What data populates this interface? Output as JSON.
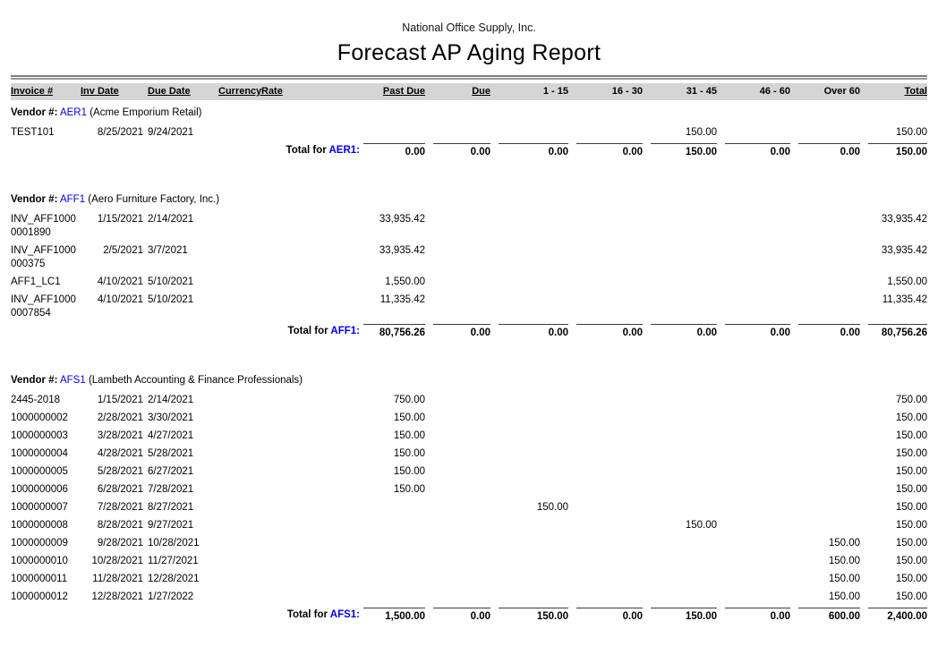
{
  "report": {
    "company": "National Office Supply, Inc.",
    "title": "Forecast AP Aging Report"
  },
  "labels": {
    "vendor_prefix": "Vendor #:",
    "total_for": "Total for"
  },
  "columns": [
    {
      "key": "invoice",
      "label": "Invoice #",
      "align": "left",
      "underline": true
    },
    {
      "key": "inv_date",
      "label": "Inv Date",
      "align": "left",
      "underline": true
    },
    {
      "key": "due_date",
      "label": "Due Date",
      "align": "left",
      "underline": true
    },
    {
      "key": "currency",
      "label": "Currency",
      "align": "left",
      "underline": true
    },
    {
      "key": "rate",
      "label": "Rate",
      "align": "left",
      "underline": true
    },
    {
      "key": "past_due",
      "label": "Past Due",
      "align": "right",
      "underline": true
    },
    {
      "key": "due",
      "label": "Due",
      "align": "right",
      "underline": true
    },
    {
      "key": "b1_15",
      "label": "1 - 15",
      "align": "right",
      "underline": false
    },
    {
      "key": "b16_30",
      "label": "16 - 30",
      "align": "right",
      "underline": false
    },
    {
      "key": "b31_45",
      "label": "31 - 45",
      "align": "right",
      "underline": false
    },
    {
      "key": "b46_60",
      "label": "46 - 60",
      "align": "right",
      "underline": false
    },
    {
      "key": "over_60",
      "label": "Over 60",
      "align": "right",
      "underline": false
    },
    {
      "key": "total",
      "label": "Total",
      "align": "right",
      "underline": true
    }
  ],
  "vendors": [
    {
      "id": "AER1",
      "id_colon": "AER1:",
      "name": "(Acme Emporium Retail)",
      "rows": [
        {
          "invoice": "TEST101",
          "inv_date": "8/25/2021",
          "due_date": "9/24/2021",
          "currency": "",
          "rate": "",
          "past_due": "",
          "due": "",
          "b1_15": "",
          "b16_30": "",
          "b31_45": "150.00",
          "b46_60": "",
          "over_60": "",
          "total": "150.00"
        }
      ],
      "total": {
        "past_due": "0.00",
        "due": "0.00",
        "b1_15": "0.00",
        "b16_30": "0.00",
        "b31_45": "150.00",
        "b46_60": "0.00",
        "over_60": "0.00",
        "total": "150.00"
      }
    },
    {
      "id": "AFF1",
      "id_colon": "AFF1:",
      "name": "(Aero Furniture Factory, Inc.)",
      "rows": [
        {
          "invoice": "INV_AFF1000\n0001890",
          "inv_date": "1/15/2021",
          "due_date": "2/14/2021",
          "currency": "",
          "rate": "",
          "past_due": "33,935.42",
          "due": "",
          "b1_15": "",
          "b16_30": "",
          "b31_45": "",
          "b46_60": "",
          "over_60": "",
          "total": "33,935.42"
        },
        {
          "invoice": "INV_AFF1000\n000375",
          "inv_date": "2/5/2021",
          "due_date": "3/7/2021",
          "currency": "",
          "rate": "",
          "past_due": "33,935.42",
          "due": "",
          "b1_15": "",
          "b16_30": "",
          "b31_45": "",
          "b46_60": "",
          "over_60": "",
          "total": "33,935.42"
        },
        {
          "invoice": "AFF1_LC1",
          "inv_date": "4/10/2021",
          "due_date": "5/10/2021",
          "currency": "",
          "rate": "",
          "past_due": "1,550.00",
          "due": "",
          "b1_15": "",
          "b16_30": "",
          "b31_45": "",
          "b46_60": "",
          "over_60": "",
          "total": "1,550.00"
        },
        {
          "invoice": "INV_AFF1000\n0007854",
          "inv_date": "4/10/2021",
          "due_date": "5/10/2021",
          "currency": "",
          "rate": "",
          "past_due": "11,335.42",
          "due": "",
          "b1_15": "",
          "b16_30": "",
          "b31_45": "",
          "b46_60": "",
          "over_60": "",
          "total": "11,335.42"
        }
      ],
      "total": {
        "past_due": "80,756.26",
        "due": "0.00",
        "b1_15": "0.00",
        "b16_30": "0.00",
        "b31_45": "0.00",
        "b46_60": "0.00",
        "over_60": "0.00",
        "total": "80,756.26"
      }
    },
    {
      "id": "AFS1",
      "id_colon": "AFS1:",
      "name": "(Lambeth Accounting & Finance Professionals)",
      "rows": [
        {
          "invoice": "2445-2018",
          "inv_date": "1/15/2021",
          "due_date": "2/14/2021",
          "currency": "",
          "rate": "",
          "past_due": "750.00",
          "due": "",
          "b1_15": "",
          "b16_30": "",
          "b31_45": "",
          "b46_60": "",
          "over_60": "",
          "total": "750.00"
        },
        {
          "invoice": "1000000002",
          "inv_date": "2/28/2021",
          "due_date": "3/30/2021",
          "currency": "",
          "rate": "",
          "past_due": "150.00",
          "due": "",
          "b1_15": "",
          "b16_30": "",
          "b31_45": "",
          "b46_60": "",
          "over_60": "",
          "total": "150.00"
        },
        {
          "invoice": "1000000003",
          "inv_date": "3/28/2021",
          "due_date": "4/27/2021",
          "currency": "",
          "rate": "",
          "past_due": "150.00",
          "due": "",
          "b1_15": "",
          "b16_30": "",
          "b31_45": "",
          "b46_60": "",
          "over_60": "",
          "total": "150.00"
        },
        {
          "invoice": "1000000004",
          "inv_date": "4/28/2021",
          "due_date": "5/28/2021",
          "currency": "",
          "rate": "",
          "past_due": "150.00",
          "due": "",
          "b1_15": "",
          "b16_30": "",
          "b31_45": "",
          "b46_60": "",
          "over_60": "",
          "total": "150.00"
        },
        {
          "invoice": "1000000005",
          "inv_date": "5/28/2021",
          "due_date": "6/27/2021",
          "currency": "",
          "rate": "",
          "past_due": "150.00",
          "due": "",
          "b1_15": "",
          "b16_30": "",
          "b31_45": "",
          "b46_60": "",
          "over_60": "",
          "total": "150.00"
        },
        {
          "invoice": "1000000006",
          "inv_date": "6/28/2021",
          "due_date": "7/28/2021",
          "currency": "",
          "rate": "",
          "past_due": "150.00",
          "due": "",
          "b1_15": "",
          "b16_30": "",
          "b31_45": "",
          "b46_60": "",
          "over_60": "",
          "total": "150.00"
        },
        {
          "invoice": "1000000007",
          "inv_date": "7/28/2021",
          "due_date": "8/27/2021",
          "currency": "",
          "rate": "",
          "past_due": "",
          "due": "",
          "b1_15": "150.00",
          "b16_30": "",
          "b31_45": "",
          "b46_60": "",
          "over_60": "",
          "total": "150.00"
        },
        {
          "invoice": "1000000008",
          "inv_date": "8/28/2021",
          "due_date": "9/27/2021",
          "currency": "",
          "rate": "",
          "past_due": "",
          "due": "",
          "b1_15": "",
          "b16_30": "",
          "b31_45": "150.00",
          "b46_60": "",
          "over_60": "",
          "total": "150.00"
        },
        {
          "invoice": "1000000009",
          "inv_date": "9/28/2021",
          "due_date": "10/28/2021",
          "currency": "",
          "rate": "",
          "past_due": "",
          "due": "",
          "b1_15": "",
          "b16_30": "",
          "b31_45": "",
          "b46_60": "",
          "over_60": "150.00",
          "total": "150.00"
        },
        {
          "invoice": "1000000010",
          "inv_date": "10/28/2021",
          "due_date": "11/27/2021",
          "currency": "",
          "rate": "",
          "past_due": "",
          "due": "",
          "b1_15": "",
          "b16_30": "",
          "b31_45": "",
          "b46_60": "",
          "over_60": "150.00",
          "total": "150.00"
        },
        {
          "invoice": "1000000011",
          "inv_date": "11/28/2021",
          "due_date": "12/28/2021",
          "currency": "",
          "rate": "",
          "past_due": "",
          "due": "",
          "b1_15": "",
          "b16_30": "",
          "b31_45": "",
          "b46_60": "",
          "over_60": "150.00",
          "total": "150.00"
        },
        {
          "invoice": "1000000012",
          "inv_date": "12/28/2021",
          "due_date": "1/27/2022",
          "currency": "",
          "rate": "",
          "past_due": "",
          "due": "",
          "b1_15": "",
          "b16_30": "",
          "b31_45": "",
          "b46_60": "",
          "over_60": "150.00",
          "total": "150.00"
        }
      ],
      "total": {
        "past_due": "1,500.00",
        "due": "0.00",
        "b1_15": "150.00",
        "b16_30": "0.00",
        "b31_45": "150.00",
        "b46_60": "0.00",
        "over_60": "600.00",
        "total": "2,400.00"
      }
    }
  ],
  "style": {
    "header_bar_color": "#d5d5d5",
    "link_blue": "#0000ee"
  }
}
